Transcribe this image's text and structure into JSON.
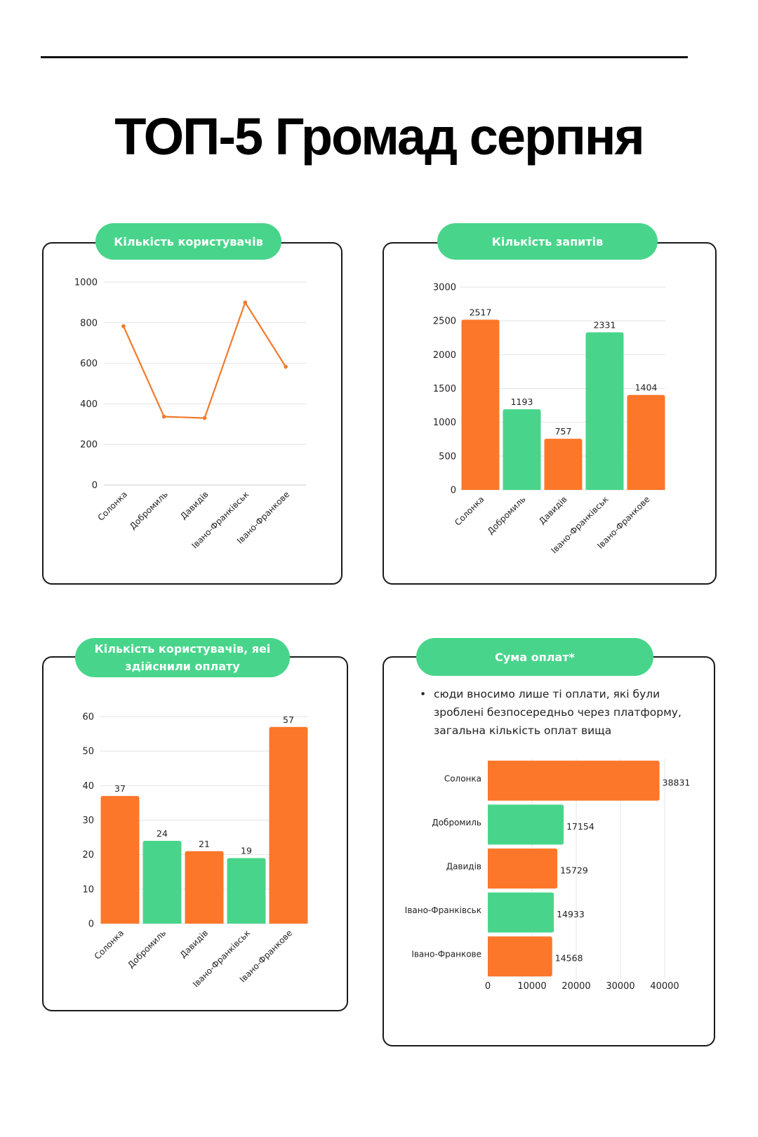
{
  "page": {
    "title": "ТОП-5 Громад серпня"
  },
  "colors": {
    "orange": "#fc772a",
    "green": "#48d58b",
    "line": "#f07a2a",
    "grid": "#e4e4e4",
    "text": "#222222"
  },
  "cards": {
    "users": {
      "title": "Кількість користувачів"
    },
    "requests": {
      "title": "Кількість запитів"
    },
    "payers": {
      "title_line1": "Кількість користувачів, яеі",
      "title_line2": "здійснили оплату"
    },
    "payments": {
      "title": "Сума оплат*",
      "note_bullet": "•",
      "note": "сюди вносимо лише ті оплати, які були зроблені безпосередньо через платформу, загальна кількість оплат вища"
    }
  },
  "chart_data": [
    {
      "id": "users",
      "type": "line",
      "title": "Кількість користувачів",
      "categories": [
        "Солонка",
        "Добромиль",
        "Давидів",
        "Івано-Франківськ",
        "Івано-Франкове"
      ],
      "values": [
        783,
        337,
        330,
        900,
        583
      ],
      "yticks": [
        0,
        200,
        400,
        600,
        800,
        1000
      ],
      "ylim": [
        0,
        1000
      ],
      "grid": true,
      "xlabel": "",
      "ylabel": ""
    },
    {
      "id": "requests",
      "type": "bar",
      "title": "Кількість запитів",
      "categories": [
        "Солонка",
        "Добромиль",
        "Давидів",
        "Івано-Франківськ",
        "Івано-Франкове"
      ],
      "values": [
        2517,
        1193,
        757,
        2331,
        1404
      ],
      "bar_colors": [
        "orange",
        "green",
        "orange",
        "green",
        "orange"
      ],
      "yticks": [
        0,
        500,
        1000,
        1500,
        2000,
        2500,
        3000
      ],
      "ylim": [
        0,
        3000
      ],
      "grid": true,
      "data_labels": true,
      "xlabel": "",
      "ylabel": ""
    },
    {
      "id": "payers",
      "type": "bar",
      "title": "Кількість користувачів, яеі здійснили оплату",
      "categories": [
        "Солонка",
        "Добромиль",
        "Давидів",
        "Івано-Франківськ",
        "Івано-Франкове"
      ],
      "values": [
        37,
        24,
        21,
        19,
        57
      ],
      "bar_colors": [
        "orange",
        "green",
        "orange",
        "green",
        "orange"
      ],
      "yticks": [
        0,
        10,
        20,
        30,
        40,
        50,
        60
      ],
      "ylim": [
        0,
        60
      ],
      "grid": true,
      "data_labels": true,
      "xlabel": "",
      "ylabel": ""
    },
    {
      "id": "payments",
      "type": "bar",
      "orientation": "horizontal",
      "title": "Сума оплат*",
      "categories": [
        "Солонка",
        "Добромиль",
        "Давидів",
        "Івано-Франківськ",
        "Івано-Франкове"
      ],
      "values": [
        38831,
        17154,
        15729,
        14933,
        14568
      ],
      "bar_colors": [
        "orange",
        "green",
        "orange",
        "green",
        "orange"
      ],
      "xticks": [
        0,
        10000,
        20000,
        30000,
        40000
      ],
      "xlim": [
        0,
        40000
      ],
      "grid": true,
      "data_labels": true,
      "xlabel": "",
      "ylabel": ""
    }
  ]
}
